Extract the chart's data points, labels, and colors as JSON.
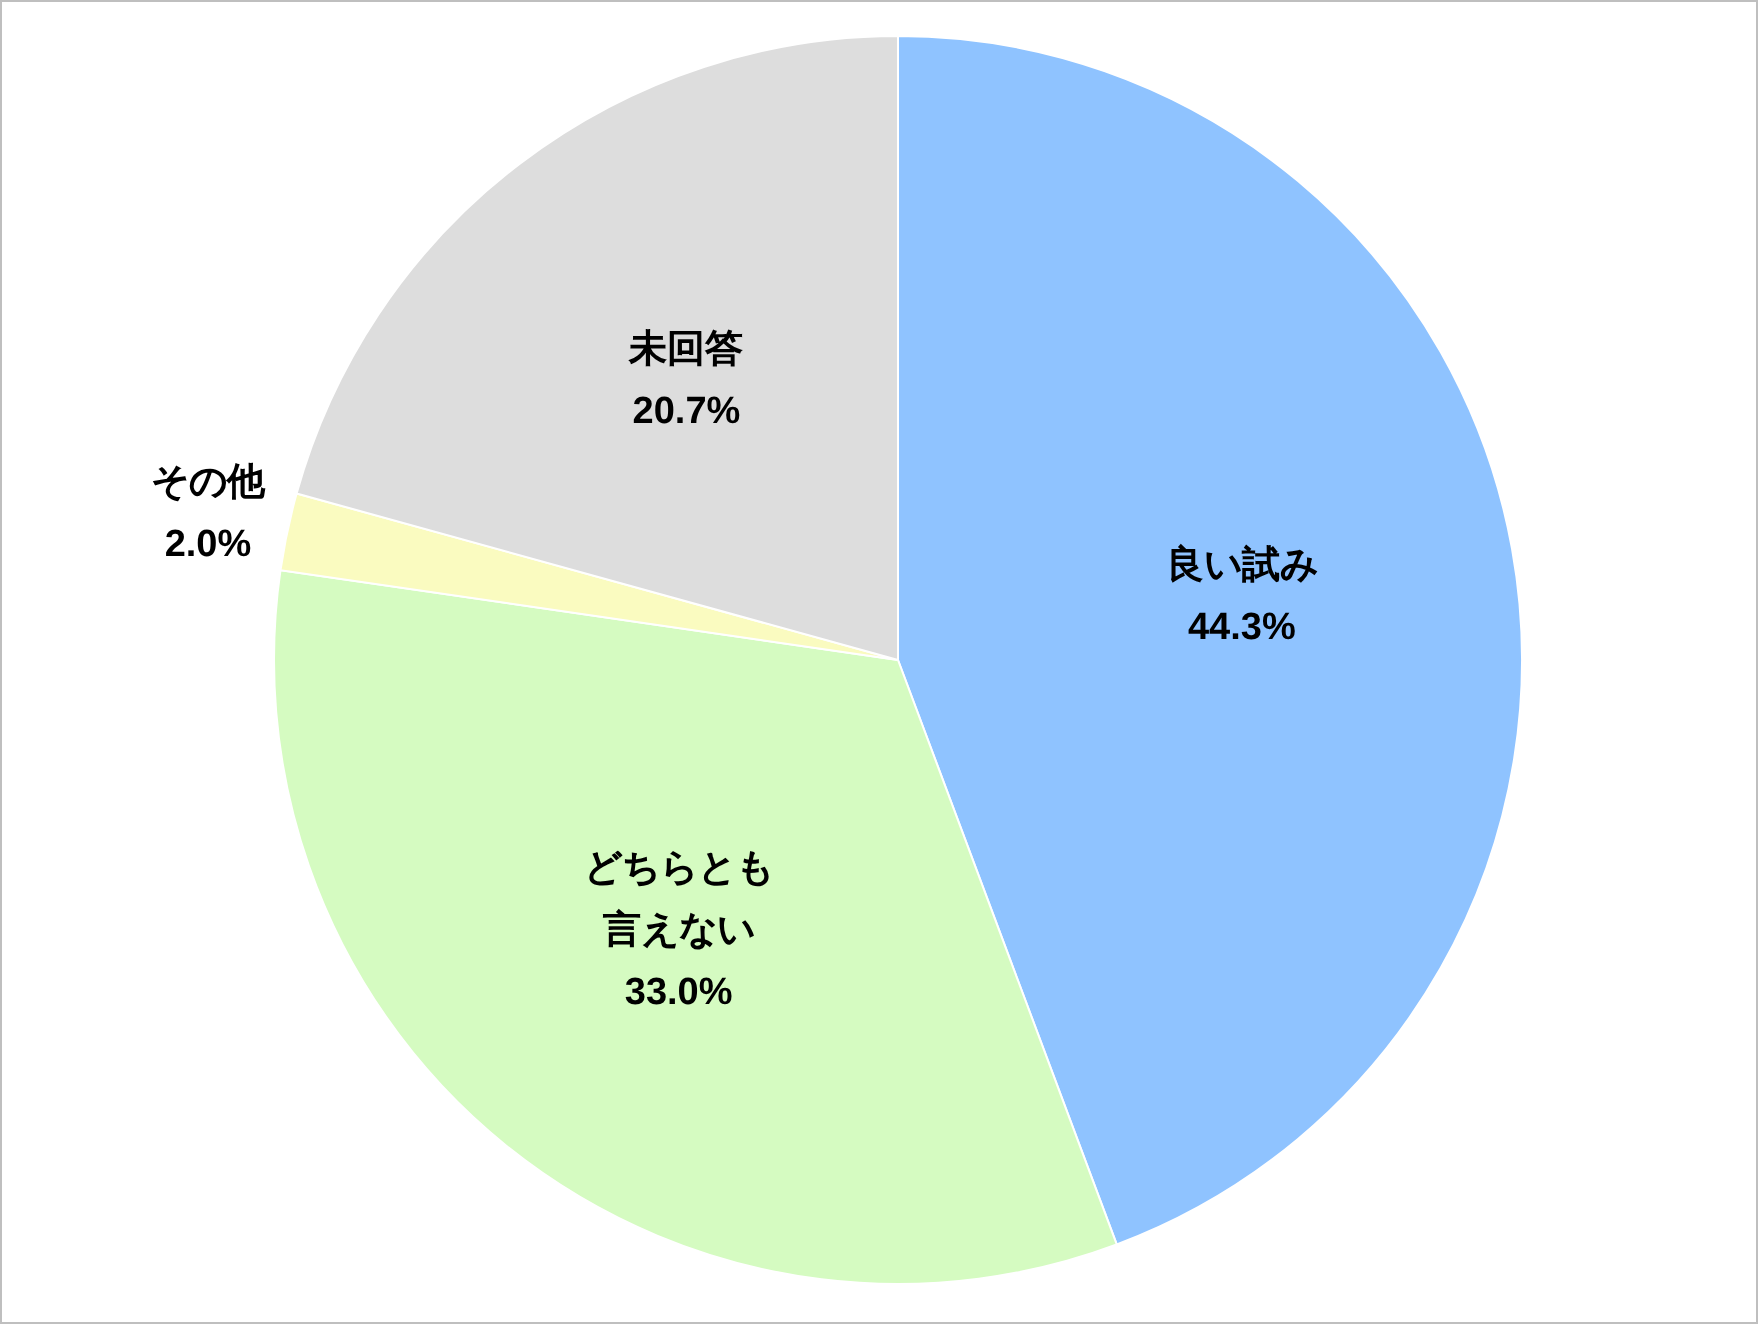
{
  "chart_data": {
    "type": "pie",
    "categories": [
      "良い試み",
      "どちらとも言えない",
      "その他",
      "未回答"
    ],
    "values": [
      44.3,
      33.0,
      2.0,
      20.7
    ],
    "value_labels": [
      "44.3%",
      "33.0%",
      "2.0%",
      "20.7%"
    ],
    "colors": [
      "#8fc3ff",
      "#d5fbc1",
      "#fafbc0",
      "#dddddd"
    ]
  }
}
